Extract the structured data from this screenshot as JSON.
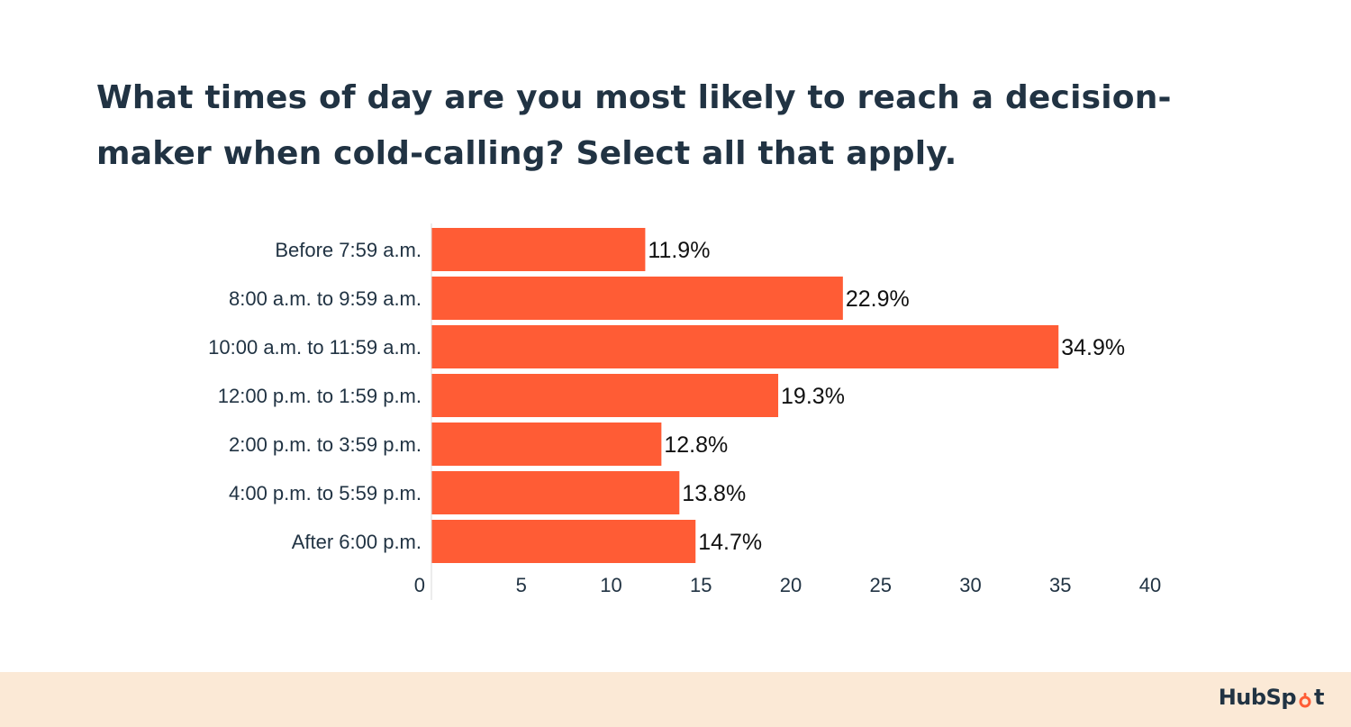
{
  "title": "What times of day are you most likely to reach a decision-maker when cold-calling? Select all that apply.",
  "brand": {
    "text_before": "HubSp",
    "text_after": "t",
    "logo_icon": "hubspot-sprocket-icon",
    "color_text": "#213343",
    "color_accent": "#ff5c35"
  },
  "colors": {
    "bar": "#ff5c35",
    "axis": "#d9d9d9",
    "footer_bg": "#fbe9d6"
  },
  "chart_data": {
    "type": "bar",
    "orientation": "horizontal",
    "categories": [
      "Before 7:59 a.m.",
      "8:00 a.m. to 9:59 a.m.",
      "10:00 a.m. to 11:59 a.m.",
      "12:00 p.m. to 1:59 p.m.",
      "2:00 p.m. to 3:59 p.m.",
      "4:00 p.m. to 5:59 p.m.",
      "After 6:00 p.m."
    ],
    "values": [
      11.9,
      22.9,
      34.9,
      19.3,
      12.8,
      13.8,
      14.7
    ],
    "value_labels": [
      "11.9%",
      "22.9%",
      "34.9%",
      "19.3%",
      "12.8%",
      "13.8%",
      "14.7%"
    ],
    "xlim": [
      0,
      40
    ],
    "xticks": [
      0,
      5,
      10,
      15,
      20,
      25,
      30,
      35,
      40
    ],
    "xlabel": "",
    "ylabel": "",
    "grid": false,
    "legend": "none"
  }
}
